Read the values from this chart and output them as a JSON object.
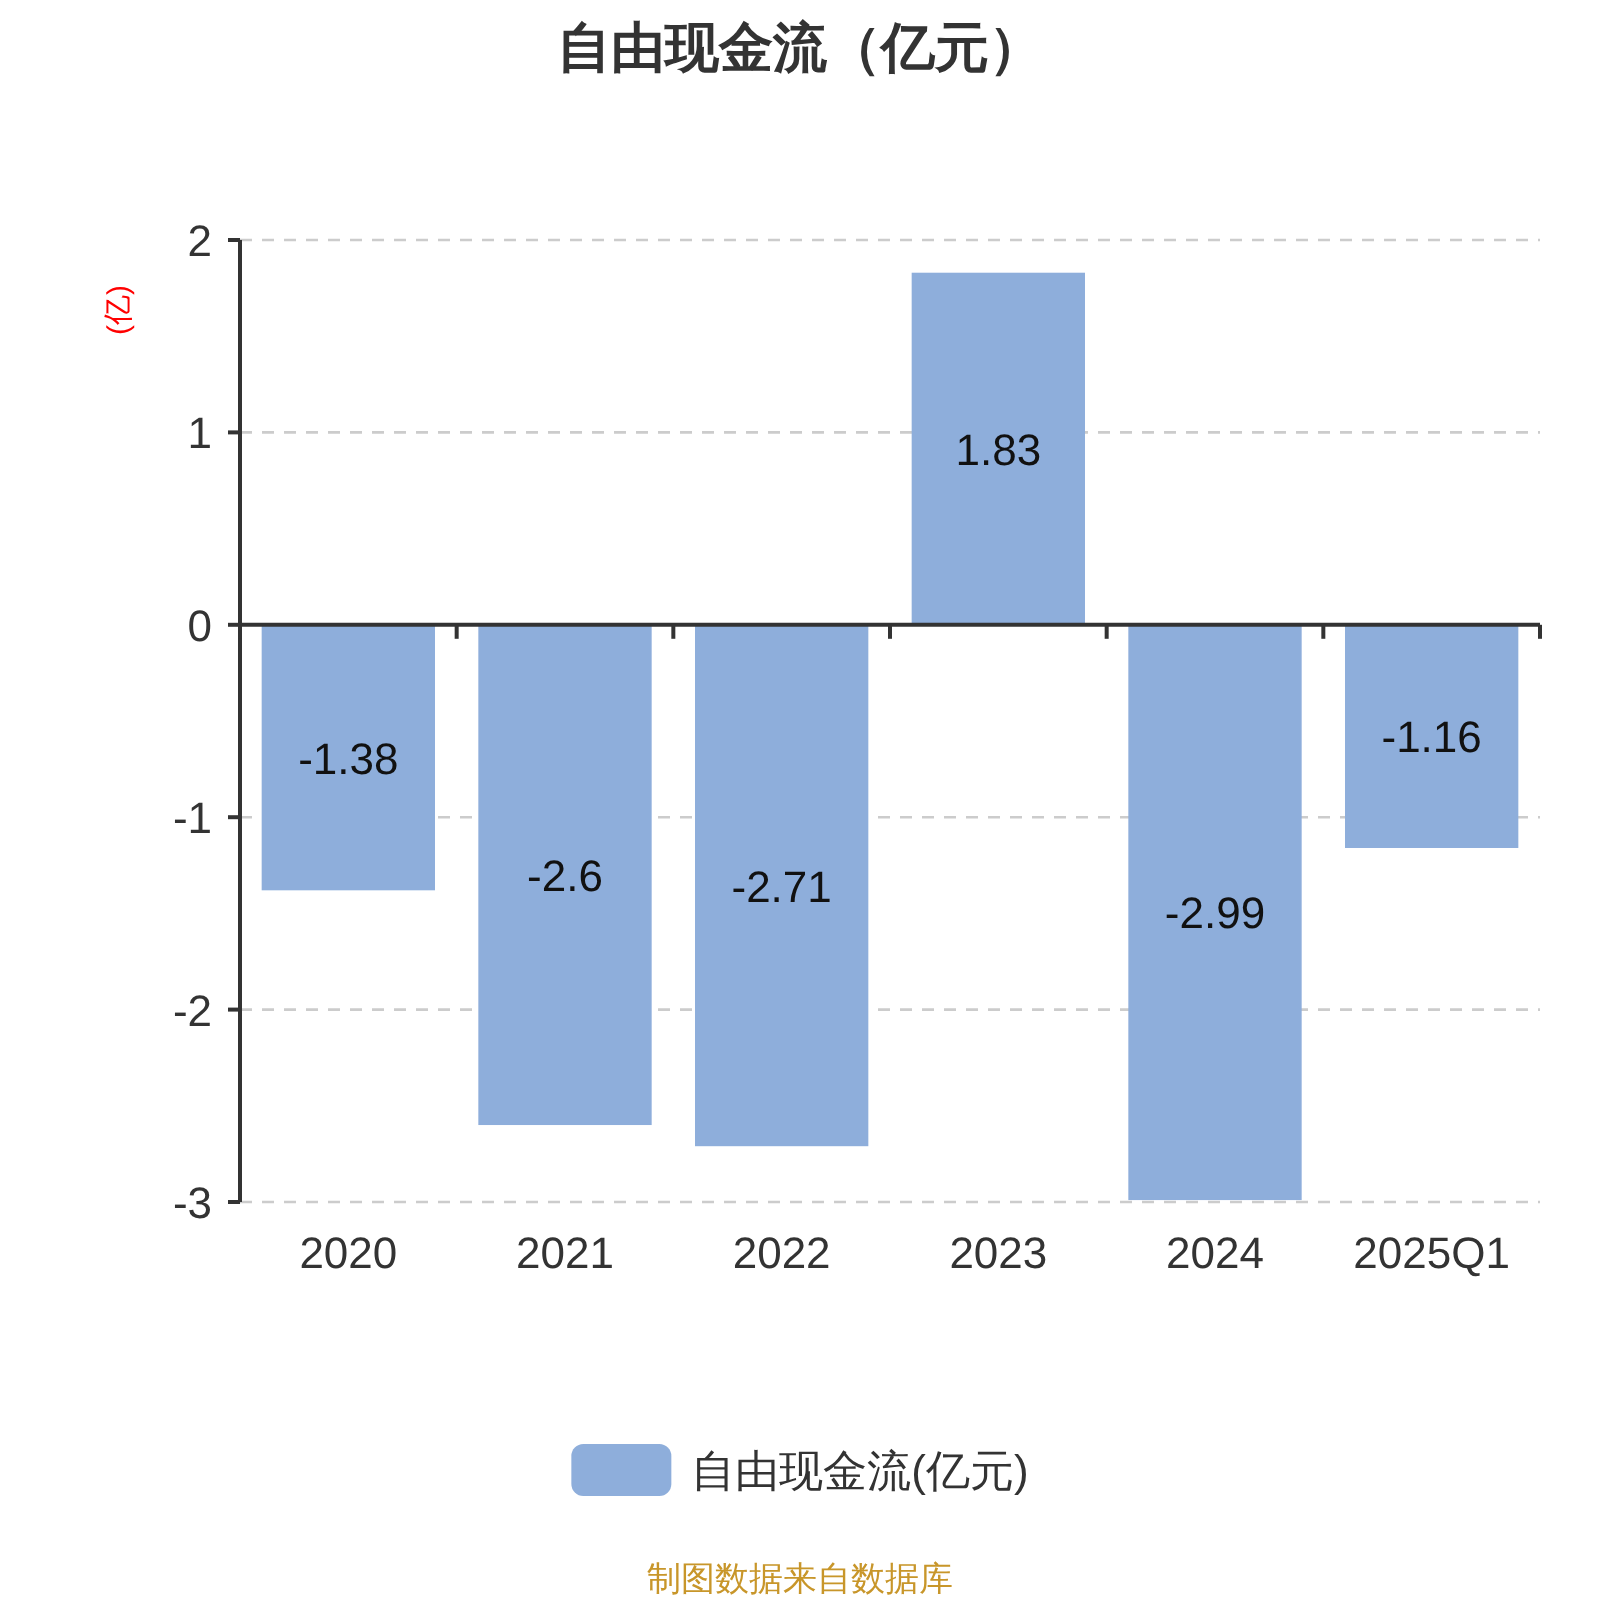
{
  "chart_data": {
    "type": "bar",
    "title": "自由现金流（亿元）",
    "ylabel": "(亿)",
    "categories": [
      "2020",
      "2021",
      "2022",
      "2023",
      "2024",
      "2025Q1"
    ],
    "series": [
      {
        "name": "自由现金流(亿元)",
        "color": "#8eaedb",
        "values": [
          -1.38,
          -2.6,
          -2.71,
          1.83,
          -2.99,
          -1.16
        ]
      }
    ],
    "ylim": [
      -3,
      2
    ],
    "yticks": [
      -3,
      -2,
      -1,
      0,
      1,
      2
    ],
    "grid": "y",
    "legend": "bottom",
    "data_labels": true,
    "annotations": [
      "制图数据来自数据库"
    ]
  }
}
